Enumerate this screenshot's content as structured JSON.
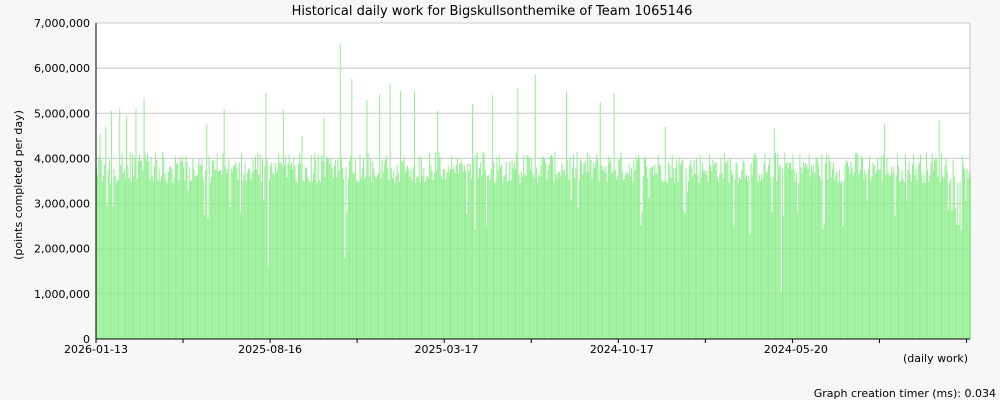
{
  "chart_data": {
    "type": "bar",
    "title": "Historical daily work for Bigskullsonthemike of Team 1065146",
    "ylabel": "(points completed per day)",
    "xlabel": "(daily work)",
    "ylim": [
      0,
      7000000
    ],
    "yticks": [
      {
        "value": 0,
        "label": "0"
      },
      {
        "value": 1000000,
        "label": "1,000,000"
      },
      {
        "value": 2000000,
        "label": "2,000,000"
      },
      {
        "value": 3000000,
        "label": "3,000,000"
      },
      {
        "value": 4000000,
        "label": "4,000,000"
      },
      {
        "value": 5000000,
        "label": "5,000,000"
      },
      {
        "value": 6000000,
        "label": "6,000,000"
      },
      {
        "value": 7000000,
        "label": "7,000,000"
      }
    ],
    "xticks": [
      "2026-01-13",
      "2025-08-16",
      "2025-03-17",
      "2024-10-17",
      "2024-05-20"
    ],
    "x_range": [
      "2026-01-13",
      "2023-12-22"
    ],
    "x_direction": "newest-left",
    "grid": true,
    "bar_color": "#90ee90",
    "baseline_value": 3800000,
    "spikes": [
      {
        "date": "2026-01-10",
        "value": 4550000
      },
      {
        "date": "2026-01-05",
        "value": 4700000
      },
      {
        "date": "2025-12-31",
        "value": 5050000
      },
      {
        "date": "2025-12-24",
        "value": 5100000
      },
      {
        "date": "2025-12-18",
        "value": 4950000
      },
      {
        "date": "2025-12-10",
        "value": 5100000
      },
      {
        "date": "2025-12-03",
        "value": 5330000
      },
      {
        "date": "2025-10-10",
        "value": 4750000
      },
      {
        "date": "2025-09-25",
        "value": 5080000
      },
      {
        "date": "2025-08-20",
        "value": 5450000
      },
      {
        "date": "2025-08-05",
        "value": 5070000
      },
      {
        "date": "2025-07-20",
        "value": 4500000
      },
      {
        "date": "2025-07-01",
        "value": 4900000
      },
      {
        "date": "2025-06-17",
        "value": 6530000
      },
      {
        "date": "2025-06-07",
        "value": 5770000
      },
      {
        "date": "2025-05-25",
        "value": 5300000
      },
      {
        "date": "2025-05-14",
        "value": 5420000
      },
      {
        "date": "2025-05-05",
        "value": 5640000
      },
      {
        "date": "2025-04-26",
        "value": 5500000
      },
      {
        "date": "2025-04-14",
        "value": 5480000
      },
      {
        "date": "2025-03-25",
        "value": 5050000
      },
      {
        "date": "2025-02-23",
        "value": 5200000
      },
      {
        "date": "2025-02-06",
        "value": 5400000
      },
      {
        "date": "2025-01-15",
        "value": 5550000
      },
      {
        "date": "2024-12-31",
        "value": 5850000
      },
      {
        "date": "2024-12-04",
        "value": 5480000
      },
      {
        "date": "2024-11-05",
        "value": 5250000
      },
      {
        "date": "2024-10-24",
        "value": 5440000
      },
      {
        "date": "2024-09-10",
        "value": 4700000
      },
      {
        "date": "2024-06-08",
        "value": 4660000
      },
      {
        "date": "2024-03-05",
        "value": 4750000
      },
      {
        "date": "2024-01-18",
        "value": 4850000
      }
    ],
    "dips": [
      {
        "date": "2025-08-18",
        "value": 1600000
      },
      {
        "date": "2025-06-13",
        "value": 1800000
      },
      {
        "date": "2024-06-02",
        "value": 1050000
      },
      {
        "date": "2024-04-10",
        "value": 2500000
      }
    ]
  },
  "footer": {
    "timer_text": "Graph creation timer (ms): 0.034"
  }
}
